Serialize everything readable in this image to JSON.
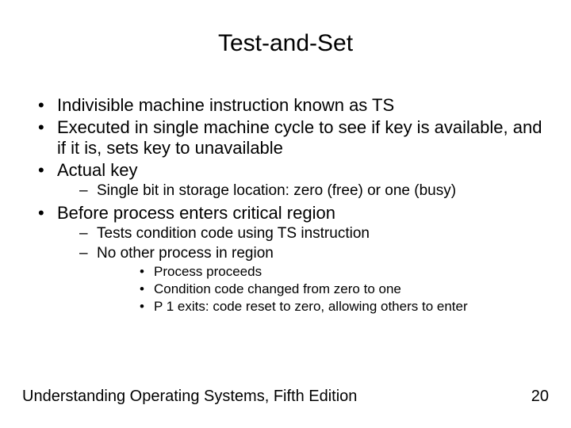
{
  "title": "Test-and-Set",
  "bullets": {
    "b1": "Indivisible machine instruction known as TS",
    "b2": "Executed in single machine cycle to see if key is available, and if it is, sets key to unavailable",
    "b3": "Actual key",
    "b3_1": "Single bit in storage location: zero (free) or one (busy)",
    "b4": "Before process enters critical region",
    "b4_1": "Tests condition code using TS instruction",
    "b4_2": "No other process in region",
    "b4_2_1": "Process proceeds",
    "b4_2_2": "Condition code changed from zero to one",
    "b4_2_3": "P 1 exits: code reset to zero, allowing others to enter"
  },
  "footer": {
    "left": "Understanding Operating Systems, Fifth Edition",
    "page": "20"
  },
  "style": {
    "background": "#ffffff",
    "text_color": "#000000",
    "title_fontsize": 30,
    "lvl1_fontsize": 22,
    "lvl2_fontsize": 19,
    "lvl3_fontsize": 17,
    "footer_fontsize": 20,
    "font_family": "Arial"
  }
}
